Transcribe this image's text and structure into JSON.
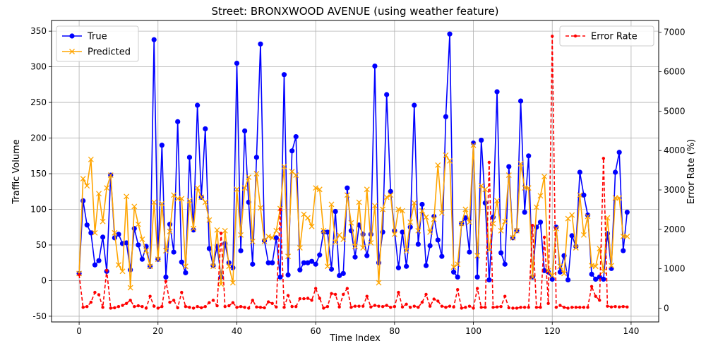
{
  "chart_data": {
    "type": "line",
    "title": "Street: BRONXWOOD AVENUE (using weather feature)",
    "xlabel": "Time Index",
    "ylabel": "Traffic Volume",
    "y2label": "Error Rate (%)",
    "xlim": [
      -7,
      147
    ],
    "ylim": [
      -58,
      365
    ],
    "y2lim": [
      -350,
      7300
    ],
    "xticks": [
      0,
      20,
      40,
      60,
      80,
      100,
      120,
      140
    ],
    "yticks": [
      -50,
      0,
      50,
      100,
      150,
      200,
      250,
      300,
      350
    ],
    "y2ticks": [
      0,
      1000,
      2000,
      3000,
      4000,
      5000,
      6000,
      7000
    ],
    "grid": true,
    "legend_left": "upper-left",
    "legend_right": "upper-right",
    "colors": {
      "true": "#0000ff",
      "predicted": "#ffa500",
      "error": "#ff0000"
    },
    "series": [
      {
        "name": "True",
        "axis": "left",
        "marker": "circle",
        "values": [
          10,
          112,
          78,
          67,
          22,
          28,
          61,
          13,
          148,
          60,
          65,
          52,
          53,
          15,
          73,
          50,
          30,
          48,
          20,
          338,
          30,
          190,
          5,
          79,
          40,
          223,
          26,
          11,
          173,
          71,
          246,
          117,
          213,
          45,
          21,
          48,
          5,
          52,
          25,
          18,
          305,
          42,
          210,
          110,
          23,
          173,
          332,
          56,
          25,
          25,
          60,
          5,
          289,
          8,
          182,
          202,
          15,
          25,
          25,
          27,
          23,
          36,
          68,
          68,
          16,
          97,
          7,
          10,
          130,
          70,
          33,
          78,
          65,
          35,
          65,
          301,
          25,
          68,
          261,
          125,
          70,
          18,
          68,
          20,
          75,
          246,
          51,
          107,
          21,
          49,
          90,
          57,
          34,
          230,
          346,
          12,
          5,
          80,
          88,
          40,
          193,
          5,
          197,
          109,
          1,
          89,
          265,
          39,
          23,
          160,
          60,
          70,
          252,
          96,
          175,
          5,
          75,
          82,
          14,
          12,
          2,
          75,
          12,
          35,
          1,
          63,
          48,
          152,
          120,
          92,
          9,
          2,
          5,
          2,
          66,
          17,
          152,
          180,
          42,
          96
        ]
      },
      {
        "name": "Predicted",
        "axis": "left",
        "marker": "x",
        "values": [
          10,
          143,
          133,
          170,
          67,
          122,
          83,
          130,
          148,
          67,
          22,
          13,
          118,
          -10,
          104,
          79,
          58,
          42,
          20,
          110,
          30,
          108,
          42,
          69,
          120,
          115,
          115,
          20,
          112,
          73,
          130,
          117,
          110,
          85,
          20,
          71,
          -5,
          70,
          20,
          -3,
          128,
          64,
          130,
          145,
          55,
          150,
          102,
          55,
          62,
          60,
          70,
          101,
          160,
          34,
          153,
          148,
          46,
          93,
          88,
          76,
          130,
          128,
          70,
          20,
          107,
          54,
          64,
          58,
          120,
          81,
          48,
          110,
          46,
          128,
          53,
          105,
          -3,
          100,
          117,
          120,
          65,
          100,
          98,
          42,
          82,
          109,
          70,
          98,
          89,
          68,
          86,
          162,
          95,
          176,
          168,
          19,
          23,
          80,
          100,
          82,
          190,
          35,
          133,
          128,
          43,
          80,
          112,
          70,
          83,
          148,
          60,
          70,
          164,
          130,
          130,
          5,
          103,
          119,
          146,
          14,
          7,
          73,
          20,
          10,
          87,
          92,
          46,
          120,
          64,
          90,
          21,
          20,
          45,
          13,
          88,
          21,
          116,
          116,
          62,
          62
        ]
      },
      {
        "name": "Error Rate",
        "axis": "right",
        "marker": "dot",
        "values": [
          850,
          20,
          40,
          150,
          400,
          340,
          20,
          960,
          0,
          10,
          40,
          70,
          120,
          200,
          40,
          60,
          40,
          0,
          300,
          50,
          0,
          40,
          680,
          150,
          200,
          10,
          400,
          40,
          20,
          0,
          40,
          10,
          40,
          140,
          200,
          60,
          1900,
          40,
          60,
          140,
          20,
          40,
          20,
          0,
          200,
          30,
          20,
          10,
          160,
          120,
          30,
          2500,
          20,
          320,
          40,
          40,
          240,
          240,
          250,
          200,
          500,
          250,
          0,
          40,
          370,
          350,
          30,
          350,
          500,
          20,
          50,
          50,
          50,
          300,
          30,
          70,
          50,
          40,
          70,
          20,
          40,
          400,
          30,
          100,
          20,
          50,
          20,
          150,
          350,
          50,
          230,
          180,
          50,
          20,
          50,
          30,
          470,
          0,
          20,
          50,
          0,
          500,
          20,
          20,
          3700,
          20,
          30,
          40,
          300,
          10,
          0,
          0,
          20,
          20,
          20,
          2100,
          20,
          20,
          1800,
          120,
          6900,
          20,
          70,
          20,
          0,
          20,
          20,
          20,
          20,
          20,
          550,
          300,
          200,
          3800,
          50,
          30,
          40,
          30,
          40,
          30
        ]
      }
    ]
  }
}
